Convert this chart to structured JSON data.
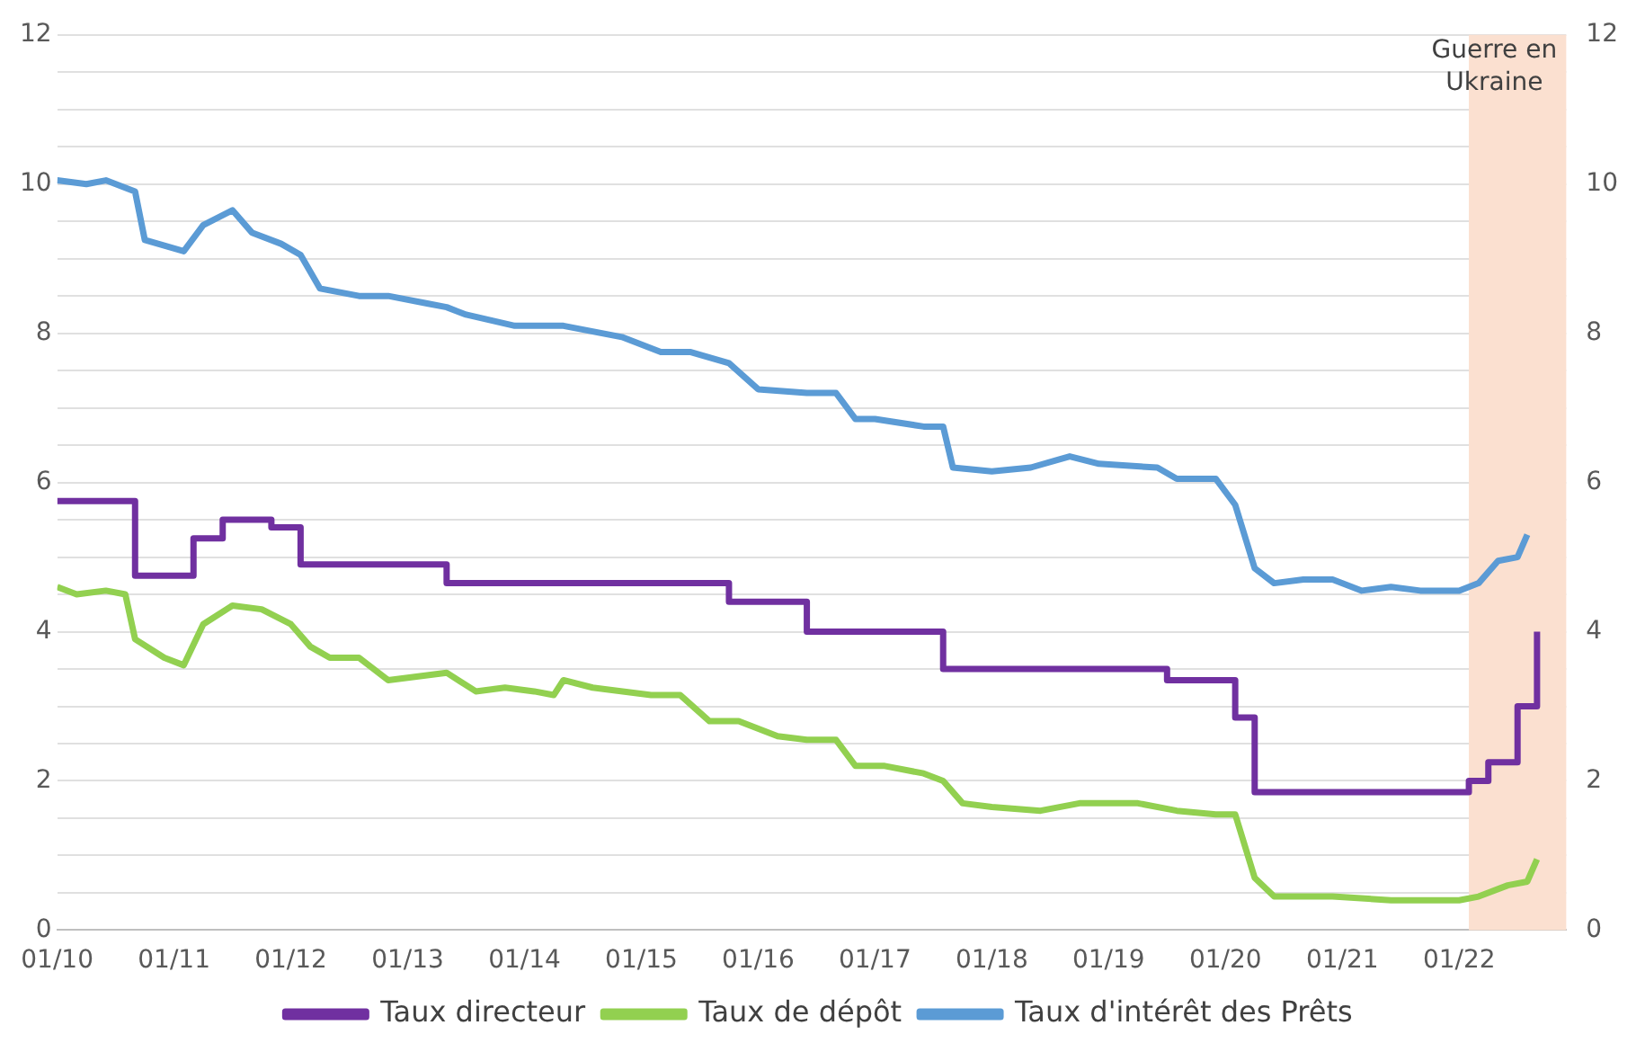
{
  "chart_data": {
    "type": "line",
    "xlim": [
      "2010-01",
      "2022-12"
    ],
    "xticks": [
      {
        "value": "2010-01",
        "label": "01/10"
      },
      {
        "value": "2011-01",
        "label": "01/11"
      },
      {
        "value": "2012-01",
        "label": "01/12"
      },
      {
        "value": "2013-01",
        "label": "01/13"
      },
      {
        "value": "2014-01",
        "label": "01/14"
      },
      {
        "value": "2015-01",
        "label": "01/15"
      },
      {
        "value": "2016-01",
        "label": "01/16"
      },
      {
        "value": "2017-01",
        "label": "01/17"
      },
      {
        "value": "2018-01",
        "label": "01/18"
      },
      {
        "value": "2019-01",
        "label": "01/19"
      },
      {
        "value": "2020-01",
        "label": "01/20"
      },
      {
        "value": "2021-01",
        "label": "01/21"
      },
      {
        "value": "2022-01",
        "label": "01/22"
      }
    ],
    "ylim": [
      0,
      12
    ],
    "yticks": [
      0,
      {
        "value": 0.5,
        "label": null
      },
      {
        "value": 1,
        "label": null
      },
      {
        "value": 1.5,
        "label": null
      },
      2,
      {
        "value": 2.5,
        "label": null
      },
      {
        "value": 3,
        "label": null
      },
      {
        "value": 3.5,
        "label": null
      },
      4,
      {
        "value": 4.5,
        "label": null
      },
      {
        "value": 5,
        "label": null
      },
      {
        "value": 5.5,
        "label": null
      },
      6,
      {
        "value": 6.5,
        "label": null
      },
      {
        "value": 7,
        "label": null
      },
      {
        "value": 7.5,
        "label": null
      },
      8,
      {
        "value": 8.5,
        "label": null
      },
      {
        "value": 9,
        "label": null
      },
      {
        "value": 9.5,
        "label": null
      },
      10,
      {
        "value": 10.5,
        "label": null
      },
      {
        "value": 11,
        "label": null
      },
      {
        "value": 11.5,
        "label": null
      },
      12
    ],
    "y2lim": [
      0,
      12
    ],
    "y2ticks": [
      0,
      2,
      4,
      6,
      8,
      10,
      12
    ],
    "grid": "y",
    "legend": "bottom",
    "marker": "none",
    "line_style": "solid",
    "bands": [
      {
        "axis": "x",
        "from": "2022-02",
        "to": "2022-12",
        "label": "Guerre en Ukraine",
        "color": "#fbe0d0"
      }
    ],
    "series": [
      {
        "name": "Taux directeur",
        "type": "step",
        "color": "#7030a0",
        "x": [
          "2010-01",
          "2010-09",
          "2011-03",
          "2011-06",
          "2011-11",
          "2012-02",
          "2013-05",
          "2015-10",
          "2016-06",
          "2017-08",
          "2019-07",
          "2020-02",
          "2020-04",
          "2022-02",
          "2022-04",
          "2022-07",
          "2022-09"
        ],
        "values": [
          5.75,
          4.75,
          5.25,
          5.5,
          5.4,
          4.9,
          4.65,
          4.4,
          4.0,
          3.5,
          3.35,
          2.85,
          1.85,
          2.0,
          2.25,
          3.0,
          4.0
        ]
      },
      {
        "name": "Taux de dépôt",
        "color": "#92d050",
        "x": [
          "2010-01",
          "2010-03",
          "2010-06",
          "2010-08",
          "2010-09",
          "2010-12",
          "2011-02",
          "2011-04",
          "2011-07",
          "2011-10",
          "2012-01",
          "2012-03",
          "2012-05",
          "2012-08",
          "2012-11",
          "2013-05",
          "2013-08",
          "2013-11",
          "2014-02",
          "2014-04",
          "2014-05",
          "2014-08",
          "2015-02",
          "2015-05",
          "2015-08",
          "2015-11",
          "2016-03",
          "2016-06",
          "2016-09",
          "2016-11",
          "2017-02",
          "2017-06",
          "2017-08",
          "2017-10",
          "2018-01",
          "2018-06",
          "2018-10",
          "2019-04",
          "2019-08",
          "2019-12",
          "2020-02",
          "2020-04",
          "2020-06",
          "2020-12",
          "2021-06",
          "2022-01",
          "2022-03",
          "2022-06",
          "2022-08",
          "2022-09"
        ],
        "values": [
          4.6,
          4.5,
          4.55,
          4.5,
          3.9,
          3.65,
          3.55,
          4.1,
          4.35,
          4.3,
          4.1,
          3.8,
          3.65,
          3.65,
          3.35,
          3.45,
          3.2,
          3.25,
          3.2,
          3.15,
          3.35,
          3.25,
          3.15,
          3.15,
          2.8,
          2.8,
          2.6,
          2.55,
          2.55,
          2.2,
          2.2,
          2.1,
          2.0,
          1.7,
          1.65,
          1.6,
          1.7,
          1.7,
          1.6,
          1.55,
          1.55,
          0.7,
          0.45,
          0.45,
          0.4,
          0.4,
          0.45,
          0.6,
          0.65,
          0.95
        ]
      },
      {
        "name": "Taux d'intérêt des Prêts",
        "color": "#5b9bd5",
        "x": [
          "2010-01",
          "2010-04",
          "2010-06",
          "2010-09",
          "2010-10",
          "2011-02",
          "2011-04",
          "2011-07",
          "2011-09",
          "2011-12",
          "2012-02",
          "2012-04",
          "2012-08",
          "2012-11",
          "2013-03",
          "2013-05",
          "2013-07",
          "2013-12",
          "2014-05",
          "2014-11",
          "2015-03",
          "2015-06",
          "2015-10",
          "2016-01",
          "2016-06",
          "2016-09",
          "2016-11",
          "2017-01",
          "2017-06",
          "2017-08",
          "2017-09",
          "2018-01",
          "2018-05",
          "2018-09",
          "2018-12",
          "2019-06",
          "2019-08",
          "2019-12",
          "2020-02",
          "2020-04",
          "2020-06",
          "2020-09",
          "2020-12",
          "2021-03",
          "2021-06",
          "2021-09",
          "2022-01",
          "2022-03",
          "2022-05",
          "2022-07",
          "2022-08"
        ],
        "values": [
          10.05,
          10.0,
          10.05,
          9.9,
          9.25,
          9.1,
          9.45,
          9.65,
          9.35,
          9.2,
          9.05,
          8.6,
          8.5,
          8.5,
          8.4,
          8.35,
          8.25,
          8.1,
          8.1,
          7.95,
          7.75,
          7.75,
          7.6,
          7.25,
          7.2,
          7.2,
          6.85,
          6.85,
          6.75,
          6.75,
          6.2,
          6.15,
          6.2,
          6.35,
          6.25,
          6.2,
          6.05,
          6.05,
          5.7,
          4.85,
          4.65,
          4.7,
          4.7,
          4.55,
          4.6,
          4.55,
          4.55,
          4.65,
          4.95,
          5.0,
          5.3
        ]
      }
    ]
  }
}
